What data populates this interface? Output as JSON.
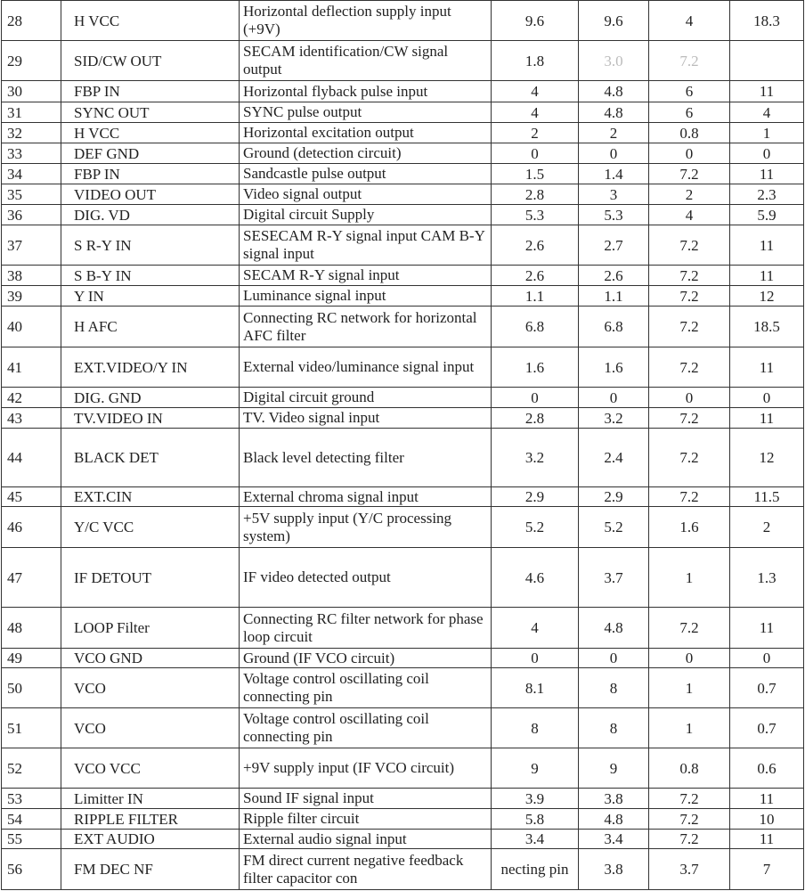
{
  "rows": [
    [
      "28",
      "H VCC",
      "Horizontal deflection supply input (+9V)",
      "9.6",
      "9.6",
      "4",
      "18.3"
    ],
    [
      "29",
      "SID/CW  OUT",
      "SECAM   identification/CW signal output",
      "1.8",
      "3.0",
      "7.2",
      ""
    ],
    [
      "30",
      "FBP IN",
      "Horizontal flyback pulse input",
      "4",
      "4.8",
      "6",
      "11"
    ],
    [
      "31",
      "SYNC OUT",
      "SYNC pulse output",
      "4",
      "4.8",
      "6",
      "4"
    ],
    [
      "32",
      "H VCC",
      "Horizontal excitation output",
      "2",
      "2",
      "0.8",
      "1"
    ],
    [
      "33",
      "DEF GND",
      "Ground (detection circuit)",
      "0",
      "0",
      "0",
      "0"
    ],
    [
      "34",
      "FBP IN",
      "Sandcastle pulse output",
      "1.5",
      "1.4",
      "7.2",
      "11"
    ],
    [
      "35",
      "VIDEO OUT",
      "Video signal output",
      "2.8",
      "3",
      "2",
      "2.3"
    ],
    [
      "36",
      "DIG. VD",
      "Digital circuit Supply",
      "5.3",
      "5.3",
      "4",
      "5.9"
    ],
    [
      "37",
      "S R-Y IN",
      "SESECAM R-Y signal input CAM B-Y signal input",
      "2.6",
      "2.7",
      "7.2",
      "11"
    ],
    [
      "38",
      "S B-Y IN",
      "SECAM R-Y signal input",
      "2.6",
      "2.6",
      "7.2",
      "11"
    ],
    [
      "39",
      "Y IN",
      "Luminance signal input",
      "1.1",
      "1.1",
      "7.2",
      "12"
    ],
    [
      "40",
      "H AFC",
      "Connecting RC network for horizontal AFC filter",
      "6.8",
      "6.8",
      "7.2",
      "18.5"
    ],
    [
      "41",
      "EXT.VIDEO/Y IN",
      "External video/luminance signal input",
      "1.6",
      "1.6",
      "7.2",
      "11"
    ],
    [
      "42",
      "DIG. GND",
      "Digital circuit ground",
      "0",
      "0",
      "0",
      "0"
    ],
    [
      "43",
      "TV.VIDEO IN",
      "TV. Video signal input",
      "2.8",
      "3.2",
      "7.2",
      "11"
    ],
    [
      "44",
      "BLACK DET",
      "Black level detecting filter",
      "3.2",
      "2.4",
      "7.2",
      "12"
    ],
    [
      "45",
      "EXT.CIN",
      "External chroma signal input",
      "2.9",
      "2.9",
      "7.2",
      "11.5"
    ],
    [
      "46",
      "Y/C VCC",
      "+5V supply input (Y/C processing system)",
      "5.2",
      "5.2",
      "1.6",
      "2"
    ],
    [
      "47",
      "IF DETOUT",
      "IF video detected output",
      "4.6",
      "3.7",
      "1",
      "1.3"
    ],
    [
      "48",
      "LOOP Filter",
      "Connecting RC filter network for phase loop circuit",
      "4",
      "4.8",
      "7.2",
      "11"
    ],
    [
      "49",
      "VCO GND",
      "Ground (IF VCO circuit)",
      "0",
      "0",
      "0",
      "0"
    ],
    [
      "50",
      "VCO",
      "Voltage control oscillating coil connecting pin",
      "8.1",
      "8",
      "1",
      "0.7"
    ],
    [
      "51",
      "VCO",
      "Voltage control oscillating coil connecting pin",
      "8",
      "8",
      "1",
      "0.7"
    ],
    [
      "52",
      "VCO VCC",
      "+9V supply input (IF VCO circuit)",
      "9",
      "9",
      "0.8",
      "0.6"
    ],
    [
      "53",
      "Limitter IN",
      "Sound IF signal input",
      "3.9",
      "3.8",
      "7.2",
      "11"
    ],
    [
      "54",
      "RIPPLE FILTER",
      "Ripple filter circuit",
      "5.8",
      "4.8",
      "7.2",
      "10"
    ],
    [
      "55",
      "EXT AUDIO",
      "External audio signal input",
      "3.4",
      "3.4",
      "7.2",
      "11"
    ],
    [
      "56",
      "FM DEC NF",
      "FM direct current negative feedback filter capacitor con",
      "necting pin",
      "3.8",
      "3.7",
      "7"
    ]
  ]
}
